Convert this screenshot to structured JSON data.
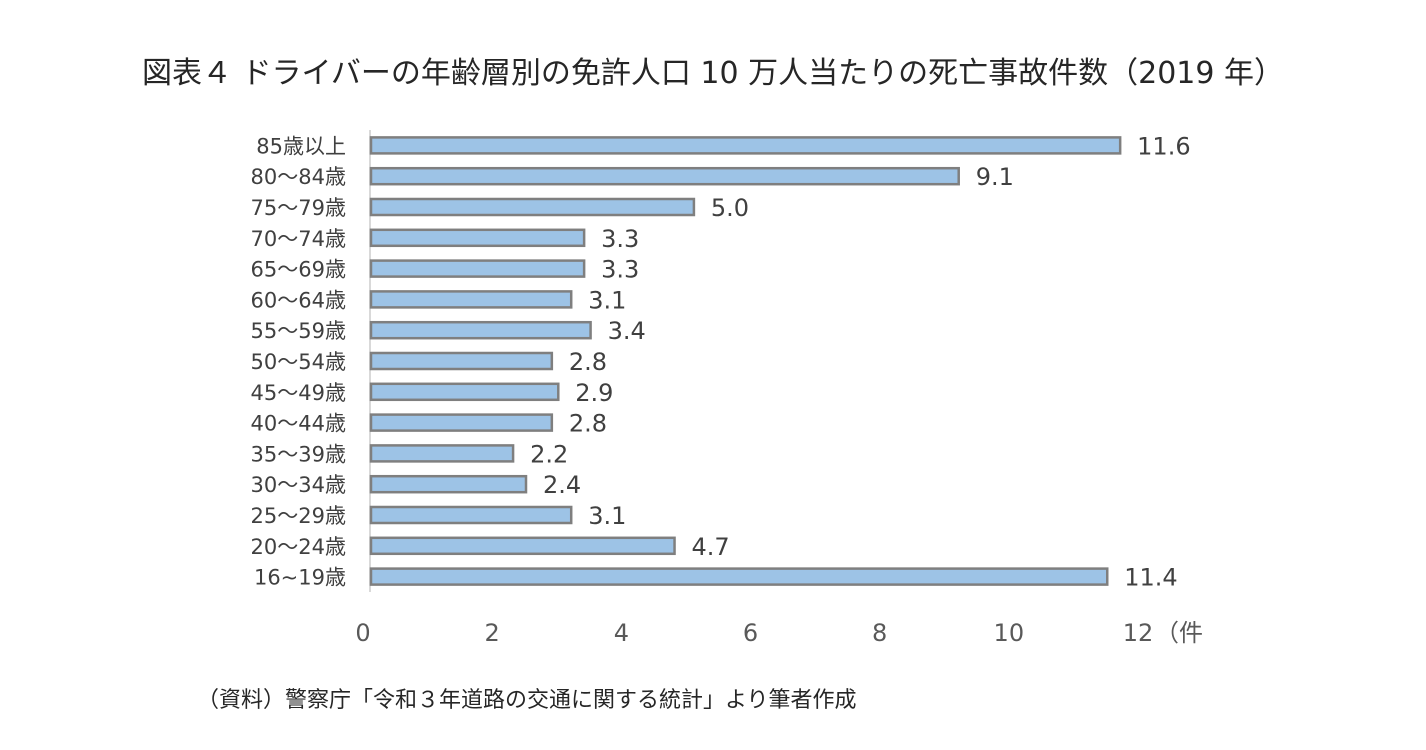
{
  "title": "図表４ ドライバーの年齢層別の免許人口 10 万人当たりの死亡事故件数（2019 年）",
  "source": "（資料）警察庁「令和３年道路の交通に関する統計」より筆者作成",
  "chart_data": {
    "type": "bar",
    "orientation": "horizontal",
    "categories": [
      "85歳以上",
      "80～84歳",
      "75～79歳",
      "70～74歳",
      "65～69歳",
      "60～64歳",
      "55～59歳",
      "50～54歳",
      "45～49歳",
      "40～44歳",
      "35～39歳",
      "30～34歳",
      "25～29歳",
      "20～24歳",
      "16~19歳"
    ],
    "values": [
      11.6,
      9.1,
      5.0,
      3.3,
      3.3,
      3.1,
      3.4,
      2.8,
      2.9,
      2.8,
      2.2,
      2.4,
      3.1,
      4.7,
      11.4
    ],
    "value_labels": [
      "11.6",
      "9.1",
      "5.0",
      "3.3",
      "3.3",
      "3.1",
      "3.4",
      "2.8",
      "2.9",
      "2.8",
      "2.2",
      "2.4",
      "3.1",
      "4.7",
      "11.4"
    ],
    "xticks": [
      "0",
      "2",
      "4",
      "6",
      "8",
      "10",
      "12"
    ],
    "xlim": [
      0,
      12
    ],
    "xunit": "（件",
    "grid": false,
    "bar_color": "#9DC3E6",
    "bar_edge_color": "#7F7F7F"
  }
}
